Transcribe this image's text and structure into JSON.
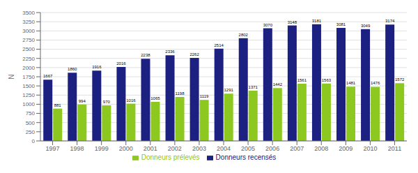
{
  "chart_data": {
    "type": "bar",
    "ylabel": "N",
    "categories": [
      "1997",
      "1998",
      "1999",
      "2000",
      "2001",
      "2002",
      "2003",
      "2004",
      "2005",
      "2006",
      "2007",
      "2008",
      "2009",
      "2010",
      "2011"
    ],
    "series": [
      {
        "name": "Donneurs recensés",
        "color": "#1c2080",
        "values": [
          1667,
          1860,
          1916,
          2016,
          2238,
          2336,
          2262,
          2514,
          2802,
          3070,
          3148,
          3181,
          3081,
          3049,
          3174
        ]
      },
      {
        "name": "Donneurs prélevés",
        "color": "#8dc820",
        "values": [
          881,
          994,
          970,
          1016,
          1065,
          1198,
          1119,
          1291,
          1371,
          1442,
          1561,
          1563,
          1481,
          1476,
          1572
        ]
      }
    ],
    "ylim": [
      0,
      3500
    ],
    "yticks": [
      0,
      250,
      500,
      750,
      1000,
      1250,
      1500,
      1750,
      2000,
      2250,
      2500,
      2750,
      3000,
      3250,
      3500
    ],
    "grid": true,
    "legend": "bottom",
    "data_labels": true
  }
}
